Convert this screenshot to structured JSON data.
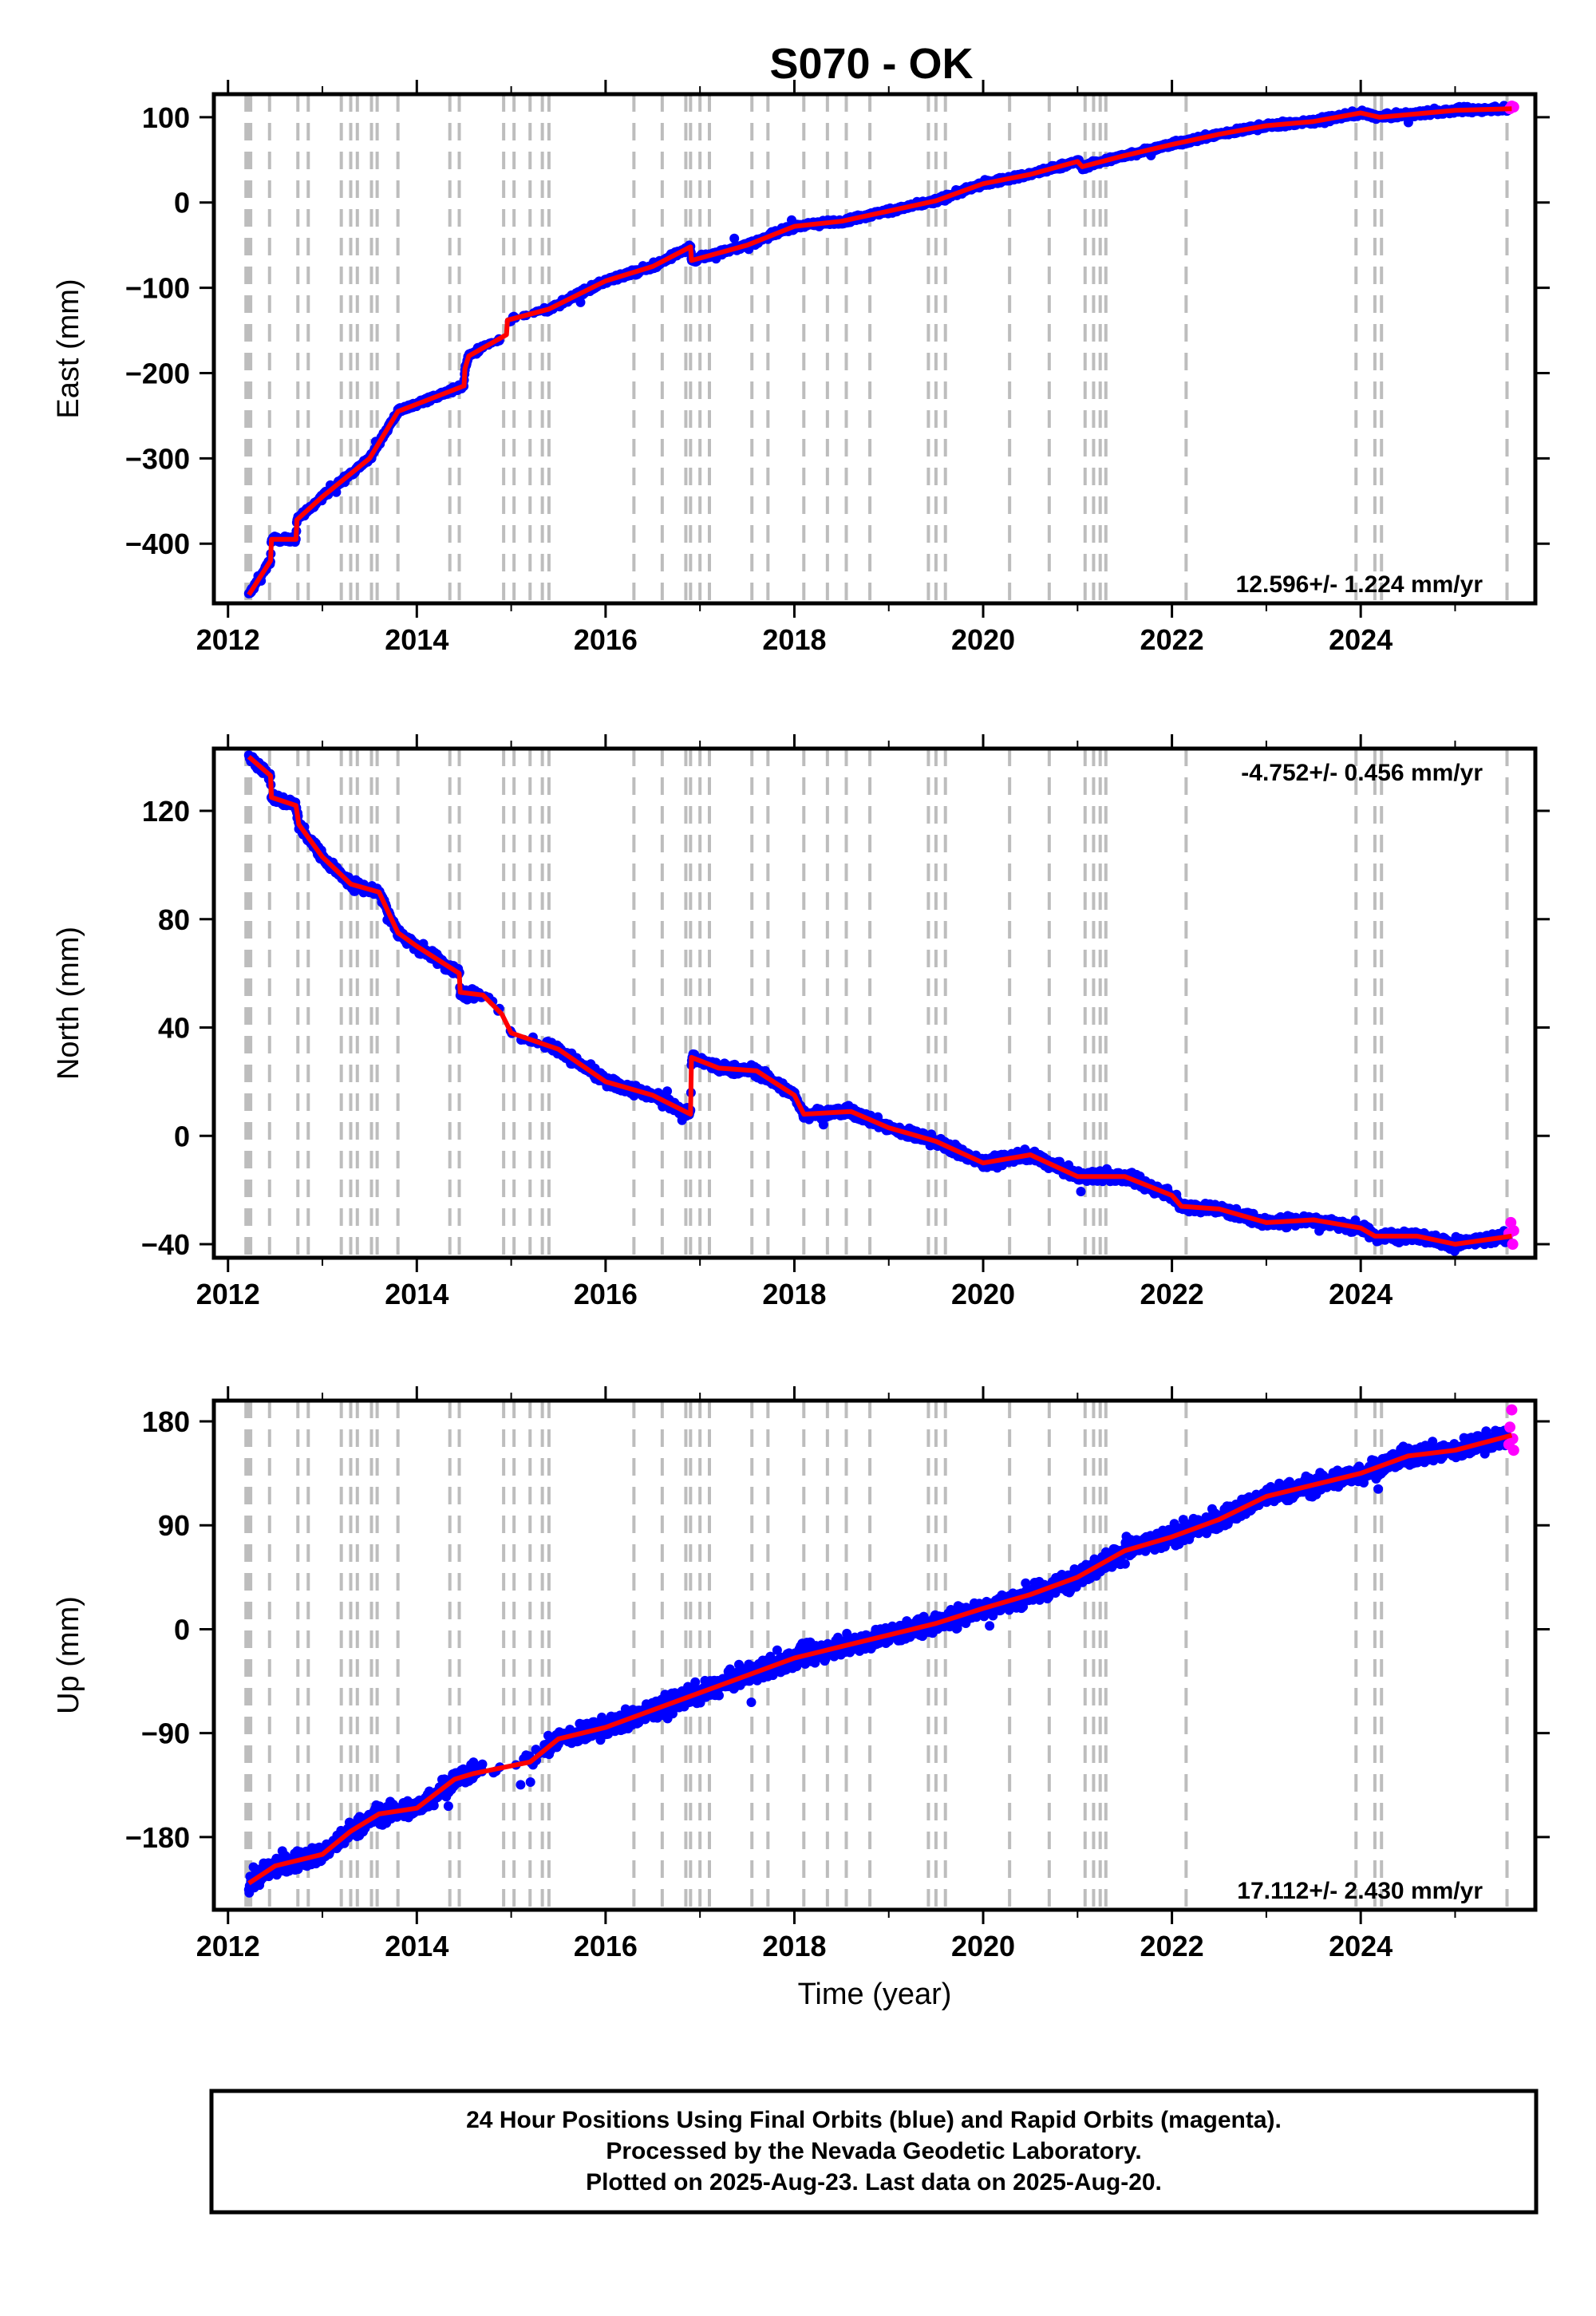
{
  "title": "S070 - OK",
  "colors": {
    "final": "#0000ff",
    "rapid": "#ff00ff",
    "model": "#ff0000",
    "event": "#bdbdbd",
    "frame": "#000000"
  },
  "chart_data": [
    {
      "type": "scatter",
      "component": "east",
      "ylabel": "East (mm)",
      "xlabel": "",
      "xlim": [
        2011.85,
        2025.85
      ],
      "ylim": [
        -470,
        127
      ],
      "x_ticks": [
        2012,
        2014,
        2016,
        2018,
        2020,
        2022,
        2024
      ],
      "x_tick_labels": [
        "2012",
        "2014",
        "2016",
        "2018",
        "2020",
        "2022",
        "2024"
      ],
      "y_ticks": [
        -400,
        -300,
        -200,
        -100,
        0,
        100
      ],
      "y_tick_labels": [
        "−400",
        "−300",
        "−200",
        "−100",
        "0",
        "100"
      ],
      "rate": "12.596+/- 1.224 mm/yr",
      "noise": 3,
      "rapid_points": [
        [
          2025.58,
          110
        ],
        [
          2025.6,
          113
        ],
        [
          2025.62,
          112
        ]
      ],
      "model": [
        [
          2012.22,
          -460
        ],
        [
          2012.45,
          -420
        ],
        [
          2012.46,
          -395
        ],
        [
          2012.72,
          -395
        ],
        [
          2012.73,
          -372
        ],
        [
          2013.0,
          -345
        ],
        [
          2013.5,
          -300
        ],
        [
          2013.8,
          -245
        ],
        [
          2014.5,
          -215
        ],
        [
          2014.51,
          -195
        ],
        [
          2014.55,
          -180
        ],
        [
          2014.95,
          -155
        ],
        [
          2014.96,
          -138
        ],
        [
          2015.4,
          -125
        ],
        [
          2016.0,
          -92
        ],
        [
          2016.5,
          -75
        ],
        [
          2016.9,
          -52
        ],
        [
          2016.91,
          -68
        ],
        [
          2017.5,
          -50
        ],
        [
          2018.0,
          -28
        ],
        [
          2018.5,
          -22
        ],
        [
          2019.0,
          -10
        ],
        [
          2019.5,
          2
        ],
        [
          2020.0,
          22
        ],
        [
          2020.5,
          33
        ],
        [
          2021.0,
          48
        ],
        [
          2021.05,
          42
        ],
        [
          2021.5,
          55
        ],
        [
          2022.0,
          68
        ],
        [
          2022.5,
          80
        ],
        [
          2023.0,
          90
        ],
        [
          2023.5,
          95
        ],
        [
          2024.0,
          105
        ],
        [
          2024.2,
          100
        ],
        [
          2025.0,
          108
        ],
        [
          2025.6,
          110
        ]
      ]
    },
    {
      "type": "scatter",
      "component": "north",
      "ylabel": "North (mm)",
      "xlabel": "",
      "xlim": [
        2011.85,
        2025.85
      ],
      "ylim": [
        -45,
        143
      ],
      "x_ticks": [
        2012,
        2014,
        2016,
        2018,
        2020,
        2022,
        2024
      ],
      "x_tick_labels": [
        "2012",
        "2014",
        "2016",
        "2018",
        "2020",
        "2022",
        "2024"
      ],
      "y_ticks": [
        -40,
        0,
        40,
        80,
        120
      ],
      "y_tick_labels": [
        "−40",
        "0",
        "40",
        "80",
        "120"
      ],
      "rate": "-4.752+/- 0.456 mm/yr",
      "noise": 1.8,
      "rapid_points": [
        [
          2025.57,
          -36
        ],
        [
          2025.59,
          -32
        ],
        [
          2025.61,
          -40
        ],
        [
          2025.62,
          -35
        ]
      ],
      "model": [
        [
          2012.22,
          140
        ],
        [
          2012.45,
          133
        ],
        [
          2012.46,
          125
        ],
        [
          2012.72,
          122
        ],
        [
          2012.75,
          115
        ],
        [
          2013.0,
          103
        ],
        [
          2013.3,
          93
        ],
        [
          2013.6,
          90
        ],
        [
          2013.8,
          75
        ],
        [
          2014.0,
          70
        ],
        [
          2014.45,
          60
        ],
        [
          2014.46,
          53
        ],
        [
          2014.7,
          52
        ],
        [
          2014.9,
          45
        ],
        [
          2015.0,
          38
        ],
        [
          2015.5,
          32
        ],
        [
          2016.0,
          20
        ],
        [
          2016.5,
          15
        ],
        [
          2016.9,
          8
        ],
        [
          2016.91,
          29
        ],
        [
          2017.2,
          25
        ],
        [
          2017.6,
          24
        ],
        [
          2018.0,
          15
        ],
        [
          2018.1,
          8
        ],
        [
          2018.6,
          9
        ],
        [
          2019.0,
          3
        ],
        [
          2019.5,
          -2
        ],
        [
          2020.0,
          -10
        ],
        [
          2020.5,
          -7
        ],
        [
          2021.0,
          -15
        ],
        [
          2021.5,
          -15
        ],
        [
          2022.0,
          -22
        ],
        [
          2022.1,
          -26
        ],
        [
          2022.5,
          -27
        ],
        [
          2023.0,
          -32
        ],
        [
          2023.5,
          -31
        ],
        [
          2024.0,
          -34
        ],
        [
          2024.15,
          -37
        ],
        [
          2024.6,
          -37
        ],
        [
          2025.0,
          -40
        ],
        [
          2025.6,
          -37
        ]
      ]
    },
    {
      "type": "scatter",
      "component": "up",
      "ylabel": "Up (mm)",
      "xlabel": "Time (year)",
      "xlim": [
        2011.85,
        2025.85
      ],
      "ylim": [
        -243,
        198
      ],
      "x_ticks": [
        2012,
        2014,
        2016,
        2018,
        2020,
        2022,
        2024
      ],
      "x_tick_labels": [
        "2012",
        "2014",
        "2016",
        "2018",
        "2020",
        "2022",
        "2024"
      ],
      "y_ticks": [
        -180,
        -90,
        0,
        90,
        180
      ],
      "y_tick_labels": [
        "−180",
        "−90",
        "0",
        "90",
        "180"
      ],
      "rate": "17.112+/- 2.430 mm/yr",
      "noise": 8,
      "rapid_points": [
        [
          2025.57,
          160
        ],
        [
          2025.58,
          175
        ],
        [
          2025.6,
          190
        ],
        [
          2025.61,
          165
        ],
        [
          2025.62,
          155
        ]
      ],
      "model": [
        [
          2012.22,
          -220
        ],
        [
          2012.5,
          -205
        ],
        [
          2013.0,
          -195
        ],
        [
          2013.3,
          -175
        ],
        [
          2013.6,
          -160
        ],
        [
          2014.0,
          -155
        ],
        [
          2014.4,
          -130
        ],
        [
          2014.6,
          -125
        ],
        [
          2015.2,
          -115
        ],
        [
          2015.5,
          -95
        ],
        [
          2016.0,
          -85
        ],
        [
          2016.5,
          -70
        ],
        [
          2017.0,
          -55
        ],
        [
          2017.5,
          -40
        ],
        [
          2018.0,
          -25
        ],
        [
          2018.5,
          -15
        ],
        [
          2019.0,
          -5
        ],
        [
          2019.5,
          5
        ],
        [
          2020.0,
          18
        ],
        [
          2020.5,
          30
        ],
        [
          2021.0,
          45
        ],
        [
          2021.5,
          68
        ],
        [
          2022.0,
          80
        ],
        [
          2022.5,
          95
        ],
        [
          2023.0,
          115
        ],
        [
          2023.5,
          125
        ],
        [
          2024.0,
          135
        ],
        [
          2024.5,
          150
        ],
        [
          2025.0,
          155
        ],
        [
          2025.6,
          168
        ]
      ]
    }
  ],
  "event_lines": [
    2012.19,
    2012.21,
    2012.24,
    2012.44,
    2012.74,
    2012.85,
    2013.2,
    2013.3,
    2013.37,
    2013.52,
    2013.58,
    2013.8,
    2014.35,
    2014.45,
    2014.92,
    2015.03,
    2015.2,
    2015.33,
    2015.4,
    2016.3,
    2016.6,
    2016.85,
    2016.9,
    2017.0,
    2017.1,
    2017.55,
    2017.72,
    2018.1,
    2018.35,
    2018.55,
    2018.8,
    2019.42,
    2019.5,
    2019.6,
    2020.28,
    2020.7,
    2021.08,
    2021.17,
    2021.24,
    2021.3,
    2022.15,
    2023.95,
    2024.15,
    2024.22,
    2025.55
  ],
  "footer": {
    "line1": "24 Hour Positions Using Final Orbits (blue) and Rapid Orbits (magenta).",
    "line2": "Processed by the Nevada Geodetic Laboratory.",
    "line3": "Plotted on 2025-Aug-23. Last data on 2025-Aug-20."
  }
}
